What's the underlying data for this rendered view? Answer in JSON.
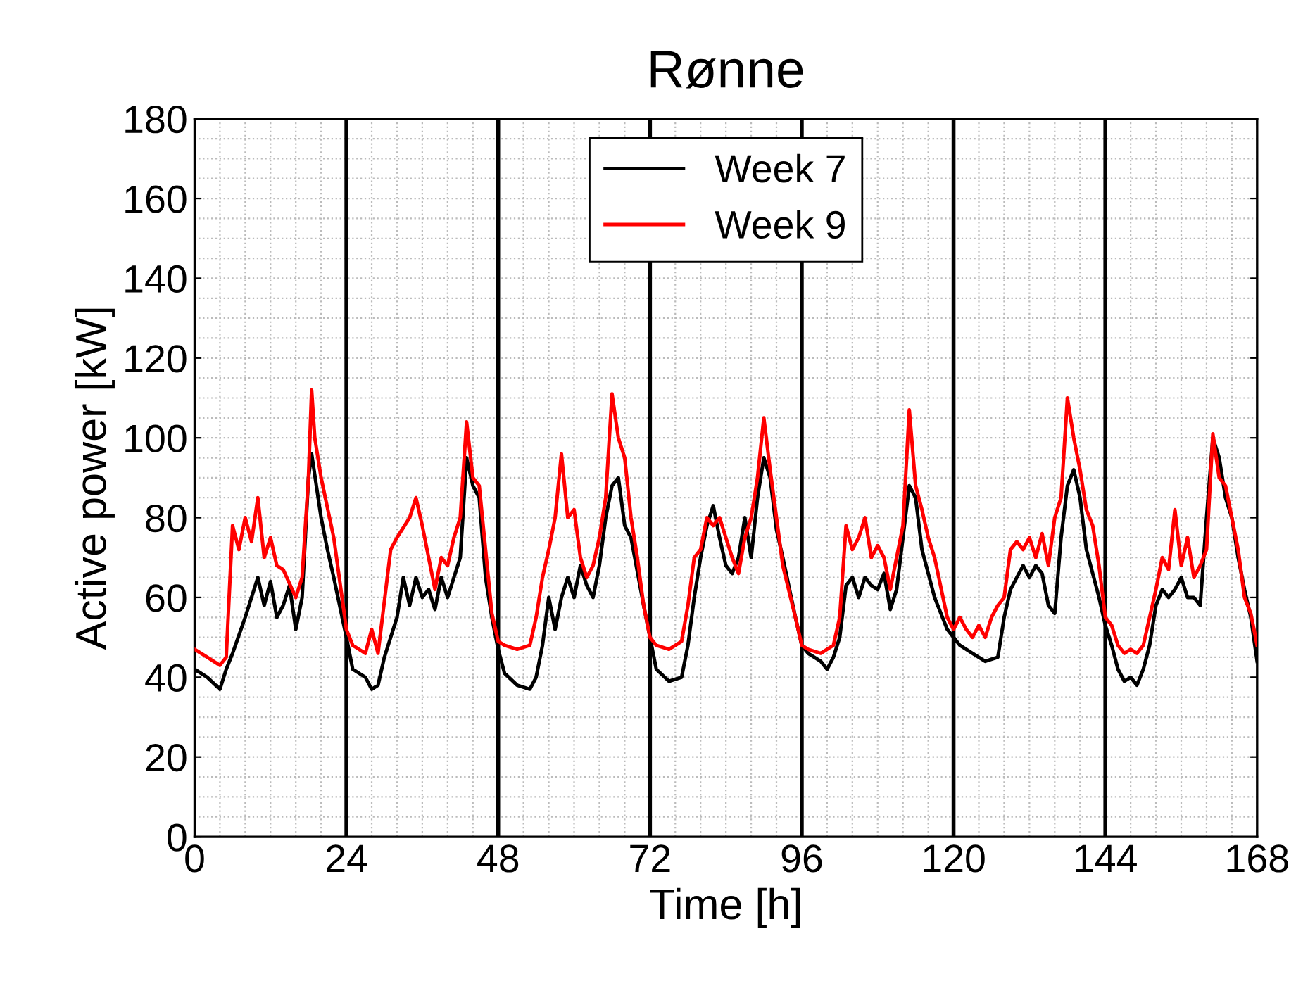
{
  "chart_data": {
    "type": "line",
    "title": "Rønne",
    "xlabel": "Time [h]",
    "ylabel": "Active power [kW]",
    "xlim": [
      0,
      168
    ],
    "xticks": [
      0,
      24,
      48,
      72,
      96,
      120,
      144,
      168
    ],
    "ylim": [
      0,
      180
    ],
    "yticks": [
      0,
      20,
      40,
      60,
      80,
      100,
      120,
      140,
      160,
      180
    ],
    "grid": true,
    "legend": "top",
    "marker": "none",
    "line_style": "solid",
    "ref_lines": [
      {
        "axis": "x",
        "value": 24,
        "color": "#000000"
      },
      {
        "axis": "x",
        "value": 48,
        "color": "#000000"
      },
      {
        "axis": "x",
        "value": 72,
        "color": "#000000"
      },
      {
        "axis": "x",
        "value": 96,
        "color": "#000000"
      },
      {
        "axis": "x",
        "value": 120,
        "color": "#000000"
      },
      {
        "axis": "x",
        "value": 144,
        "color": "#000000"
      }
    ],
    "series": [
      {
        "name": "Week 7",
        "color": "#000000",
        "x": [
          0,
          2,
          4,
          5,
          6,
          8,
          10,
          11,
          12,
          13,
          14,
          15,
          16,
          17,
          18,
          18.5,
          20,
          21,
          22,
          24,
          25,
          27,
          28,
          29,
          30,
          32,
          33,
          34,
          35,
          36,
          37,
          38,
          39,
          40,
          42,
          43,
          44,
          45,
          46,
          47,
          48,
          49,
          51,
          53,
          54,
          55,
          56,
          57,
          58,
          59,
          60,
          61,
          62,
          63,
          64,
          65,
          66,
          67,
          68,
          69,
          71,
          72,
          73,
          75,
          77,
          78,
          79,
          80,
          81,
          82,
          83,
          84,
          85,
          86,
          87,
          88,
          89,
          90,
          91,
          92,
          93,
          95,
          96,
          97,
          99,
          100,
          101,
          102,
          103,
          104,
          105,
          106,
          107,
          108,
          109,
          110,
          111,
          112,
          113,
          114,
          115,
          117,
          119,
          120,
          121,
          123,
          125,
          127,
          128,
          129,
          130,
          131,
          132,
          133,
          134,
          135,
          136,
          137,
          138,
          139,
          140,
          141,
          142,
          143,
          144,
          145,
          146,
          147,
          148,
          149,
          150,
          151,
          152,
          153,
          154,
          155,
          156,
          157,
          158,
          159,
          160,
          161,
          162,
          163,
          164,
          165,
          166,
          167,
          168
        ],
        "values": [
          42,
          40,
          37,
          42,
          46,
          55,
          65,
          58,
          64,
          55,
          58,
          63,
          52,
          60,
          90,
          96,
          80,
          72,
          65,
          50,
          42,
          40,
          37,
          38,
          45,
          55,
          65,
          58,
          65,
          60,
          62,
          57,
          65,
          60,
          70,
          95,
          88,
          85,
          65,
          55,
          47,
          41,
          38,
          37,
          40,
          48,
          60,
          52,
          60,
          65,
          60,
          68,
          63,
          60,
          68,
          80,
          88,
          90,
          78,
          75,
          58,
          50,
          42,
          39,
          40,
          48,
          60,
          70,
          78,
          83,
          75,
          68,
          66,
          70,
          80,
          70,
          85,
          95,
          90,
          77,
          70,
          55,
          48,
          46,
          44,
          42,
          45,
          50,
          63,
          65,
          60,
          65,
          63,
          62,
          66,
          57,
          62,
          75,
          88,
          85,
          72,
          60,
          52,
          50,
          48,
          46,
          44,
          45,
          55,
          62,
          65,
          68,
          65,
          68,
          66,
          58,
          56,
          75,
          88,
          92,
          85,
          72,
          66,
          60,
          53,
          48,
          42,
          39,
          40,
          38,
          42,
          48,
          58,
          62,
          60,
          62,
          65,
          60,
          60,
          58,
          80,
          100,
          95,
          85,
          80,
          70,
          62,
          55,
          44
        ]
      },
      {
        "name": "Week 9",
        "color": "#ff0000",
        "x": [
          0,
          2,
          4,
          5,
          6,
          7,
          8,
          9,
          10,
          11,
          12,
          13,
          14,
          16,
          17,
          18,
          18.5,
          19,
          20,
          22,
          24,
          25,
          27,
          28,
          29,
          31,
          32,
          34,
          35,
          36,
          37,
          38,
          39,
          40,
          41,
          42,
          43,
          44,
          45,
          46,
          47,
          48,
          49,
          51,
          53,
          54,
          55,
          56,
          57,
          58,
          59,
          60,
          61,
          62,
          63,
          64,
          65,
          66,
          67,
          68,
          69,
          70,
          71,
          72,
          73,
          75,
          77,
          78,
          79,
          80,
          81,
          82,
          83,
          84,
          85,
          86,
          87,
          88,
          89,
          90,
          91,
          92,
          93,
          95,
          96,
          97,
          99,
          101,
          102,
          103,
          104,
          105,
          106,
          107,
          108,
          109,
          110,
          111,
          112,
          113,
          114,
          115,
          116,
          117,
          119,
          120,
          121,
          122,
          123,
          124,
          125,
          126,
          127,
          128,
          129,
          130,
          131,
          132,
          133,
          134,
          135,
          136,
          137,
          138,
          139,
          140,
          141,
          142,
          143,
          144,
          145,
          146,
          147,
          148,
          149,
          150,
          151,
          152,
          153,
          154,
          155,
          156,
          157,
          158,
          159,
          160,
          161,
          162,
          163,
          164,
          165,
          166,
          167,
          168
        ],
        "values": [
          47,
          45,
          43,
          45,
          78,
          72,
          80,
          74,
          85,
          70,
          75,
          68,
          67,
          60,
          65,
          90,
          112,
          100,
          90,
          75,
          52,
          48,
          46,
          52,
          46,
          72,
          75,
          80,
          85,
          78,
          70,
          62,
          70,
          68,
          75,
          80,
          104,
          90,
          88,
          72,
          56,
          49,
          48,
          47,
          48,
          55,
          65,
          72,
          80,
          96,
          80,
          82,
          70,
          65,
          68,
          75,
          85,
          111,
          100,
          95,
          80,
          70,
          58,
          50,
          48,
          47,
          49,
          58,
          70,
          72,
          80,
          78,
          80,
          75,
          70,
          66,
          75,
          80,
          90,
          105,
          92,
          80,
          68,
          55,
          48,
          47,
          46,
          48,
          55,
          78,
          72,
          75,
          80,
          70,
          73,
          70,
          62,
          70,
          78,
          107,
          88,
          82,
          75,
          70,
          55,
          52,
          55,
          52,
          50,
          53,
          50,
          55,
          58,
          60,
          72,
          74,
          72,
          75,
          70,
          76,
          68,
          80,
          85,
          110,
          100,
          92,
          82,
          78,
          68,
          55,
          53,
          48,
          46,
          47,
          46,
          48,
          55,
          62,
          70,
          67,
          82,
          68,
          75,
          65,
          68,
          72,
          101,
          90,
          88,
          80,
          72,
          60,
          56,
          48
        ]
      }
    ]
  }
}
